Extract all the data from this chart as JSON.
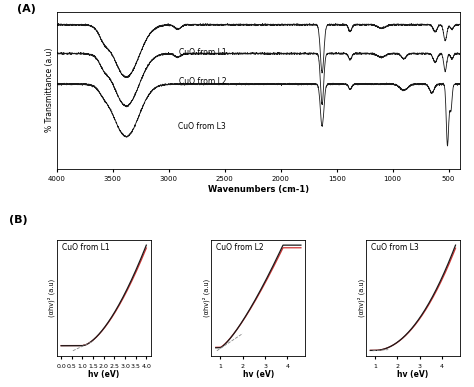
{
  "title_A": "(A)",
  "title_B": "(B)",
  "ftir_xlabel": "Wavenumbers (cm-1)",
  "ftir_ylabel": "% Transmittance (a.u)",
  "ftir_xticks": [
    4000,
    3500,
    3000,
    2500,
    2000,
    1500,
    1000,
    500
  ],
  "labels": [
    "CuO from L1",
    "CuO from L2",
    "CuO from L3"
  ],
  "tauc_xlabel": "hv (eV)",
  "tauc_ylabel": "(αhv)² (a.u)",
  "bg_color": "#ffffff",
  "line_color": "#1a1a1a",
  "red_line_color": "#cc3333"
}
